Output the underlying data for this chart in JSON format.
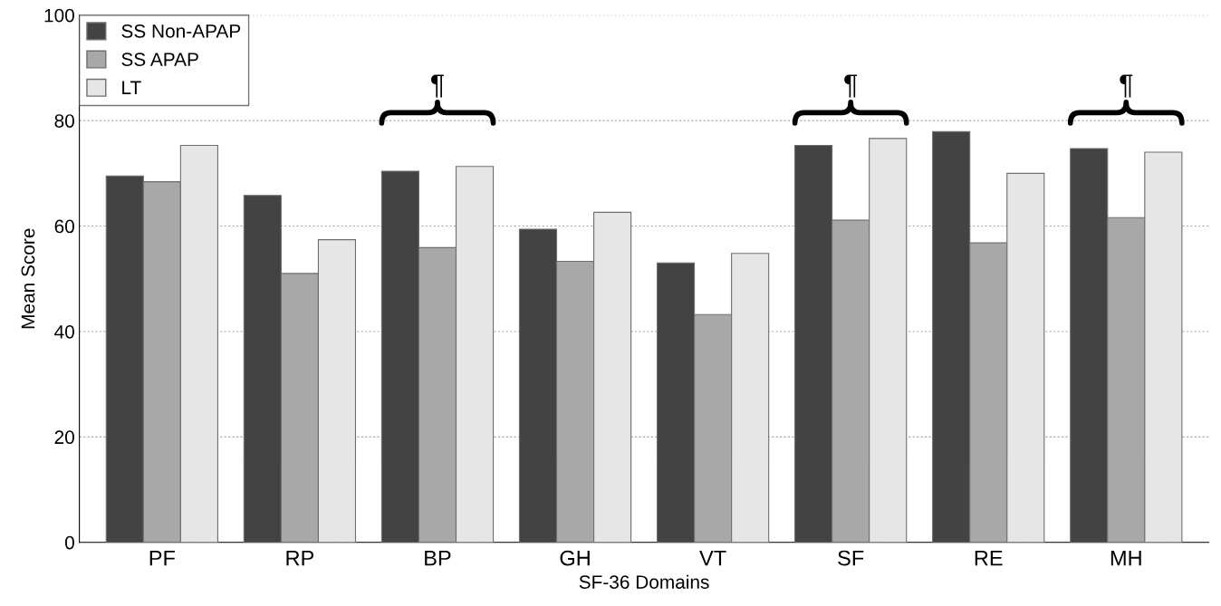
{
  "chart_data": {
    "type": "bar",
    "xlabel": "SF-36 Domains",
    "ylabel": "Mean Score",
    "categories": [
      "PF",
      "RP",
      "BP",
      "GH",
      "VT",
      "SF",
      "RE",
      "MH"
    ],
    "series": [
      {
        "name": "SS Non-APAP",
        "color": "#434343",
        "values": [
          69.5,
          65.8,
          70.4,
          59.4,
          53.0,
          75.3,
          77.9,
          74.7
        ]
      },
      {
        "name": "SS APAP",
        "color": "#a8a8a8",
        "values": [
          68.4,
          51.0,
          55.9,
          53.3,
          43.2,
          61.1,
          56.8,
          61.6
        ]
      },
      {
        "name": "LT",
        "color": "#e6e6e6",
        "values": [
          75.3,
          57.4,
          71.3,
          62.6,
          54.8,
          76.6,
          70.0,
          74.0
        ]
      }
    ],
    "ylim": [
      0,
      100
    ],
    "yticks": [
      0,
      20,
      40,
      60,
      80,
      100
    ],
    "grid": "y",
    "legend": "top left",
    "annotations": [
      "¶",
      "¶",
      "¶"
    ]
  }
}
